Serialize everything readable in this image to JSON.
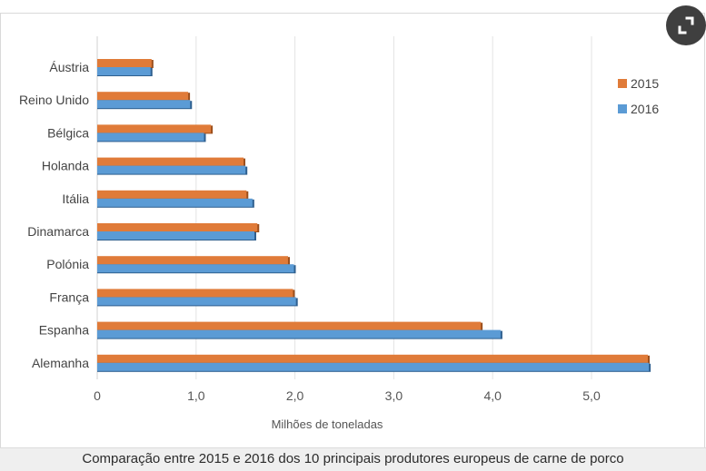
{
  "chart_data": {
    "type": "bar",
    "orientation": "horizontal",
    "categories": [
      "Áustria",
      "Reino Unido",
      "Bélgica",
      "Holanda",
      "Itália",
      "Dinamarca",
      "Polónia",
      "França",
      "Espanha",
      "Alemanha"
    ],
    "series": [
      {
        "name": "2015",
        "color": "#e07b39",
        "values": [
          0.55,
          0.92,
          1.15,
          1.48,
          1.51,
          1.62,
          1.93,
          1.98,
          3.88,
          5.57
        ]
      },
      {
        "name": "2016",
        "color": "#5b9bd5",
        "values": [
          0.54,
          0.94,
          1.08,
          1.5,
          1.57,
          1.59,
          1.99,
          2.01,
          4.08,
          5.58
        ]
      }
    ],
    "xticks": [
      "0",
      "1,0",
      "2,0",
      "3,0",
      "4,0",
      "5,0"
    ],
    "xtick_values": [
      0,
      1,
      2,
      3,
      4,
      5
    ],
    "xlim": [
      0,
      6
    ],
    "xlabel": "Milhões de toneladas",
    "legend_position": "top-right",
    "grid": true
  },
  "caption": "Comparação entre 2015 e 2016 dos 10 principais produtores europeus de carne de porco",
  "expand_icon": "expand-icon"
}
